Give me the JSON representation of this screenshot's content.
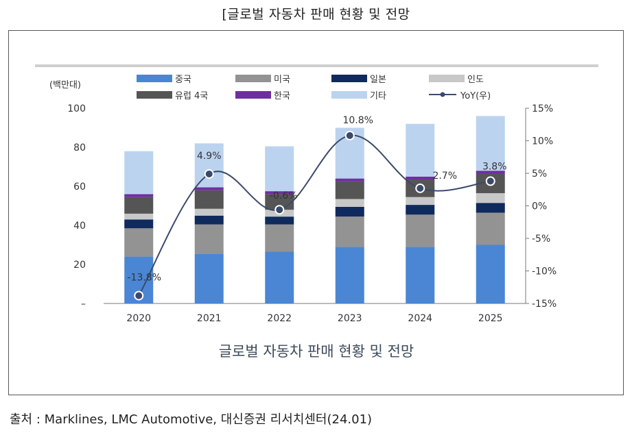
{
  "page_title": "[글로벌 자동차 판매 현황 및 전망",
  "source": "출처 : Marklines, LMC Automotive, 대신증권 리서치센터(24.01)",
  "chart_data": {
    "type": "bar",
    "stacked": true,
    "title": "글로벌 자동차 판매 현황 및 전망",
    "unit_label": "(백만대)",
    "categories": [
      "2020",
      "2021",
      "2022",
      "2023",
      "2024",
      "2025"
    ],
    "y_left": {
      "min": 0,
      "max": 100,
      "ticks": [
        "–",
        "20",
        "40",
        "60",
        "80",
        "100"
      ],
      "tick_values": [
        0,
        20,
        40,
        60,
        80,
        100
      ]
    },
    "y_right": {
      "min": -15,
      "max": 15,
      "ticks": [
        "-15%",
        "-10%",
        "-5%",
        "0%",
        "5%",
        "10%",
        "15%"
      ],
      "tick_values": [
        -15,
        -10,
        -5,
        0,
        5,
        10,
        15
      ]
    },
    "series": [
      {
        "name": "중국",
        "color": "#4a86d4",
        "values": [
          24,
          25.5,
          26.5,
          29,
          29,
          30
        ]
      },
      {
        "name": "미국",
        "color": "#939393",
        "values": [
          14.5,
          15,
          14,
          15.5,
          16.5,
          16.5
        ]
      },
      {
        "name": "일본",
        "color": "#0f2a5c",
        "values": [
          4.5,
          4.5,
          4,
          5,
          5,
          5
        ]
      },
      {
        "name": "인도",
        "color": "#c8c8c8",
        "values": [
          3,
          3.5,
          3.5,
          4,
          4,
          5
        ]
      },
      {
        "name": "유럽 4국",
        "color": "#555555",
        "values": [
          8.5,
          9.5,
          8,
          9,
          9,
          10
        ]
      },
      {
        "name": "한국",
        "color": "#6e2fa0",
        "values": [
          1.5,
          1.5,
          1.5,
          1.5,
          1.5,
          1.5
        ]
      },
      {
        "name": "기타",
        "color": "#bcd3ef",
        "values": [
          22,
          22.5,
          23,
          26,
          27,
          28
        ]
      }
    ],
    "line_series": {
      "name": "YoY(우)",
      "color": "#3a4a6a",
      "axis": "right",
      "values": [
        -13.8,
        4.9,
        -0.6,
        10.8,
        2.7,
        3.8
      ],
      "labels": [
        "-13.8%",
        "4.9%",
        "-0.6%",
        "10.8%",
        "2.7%",
        "3.8%"
      ]
    },
    "legend": {
      "placement": "top",
      "columns": 4
    },
    "grid": false,
    "xlabel": "",
    "ylabel": "(백만대)"
  }
}
